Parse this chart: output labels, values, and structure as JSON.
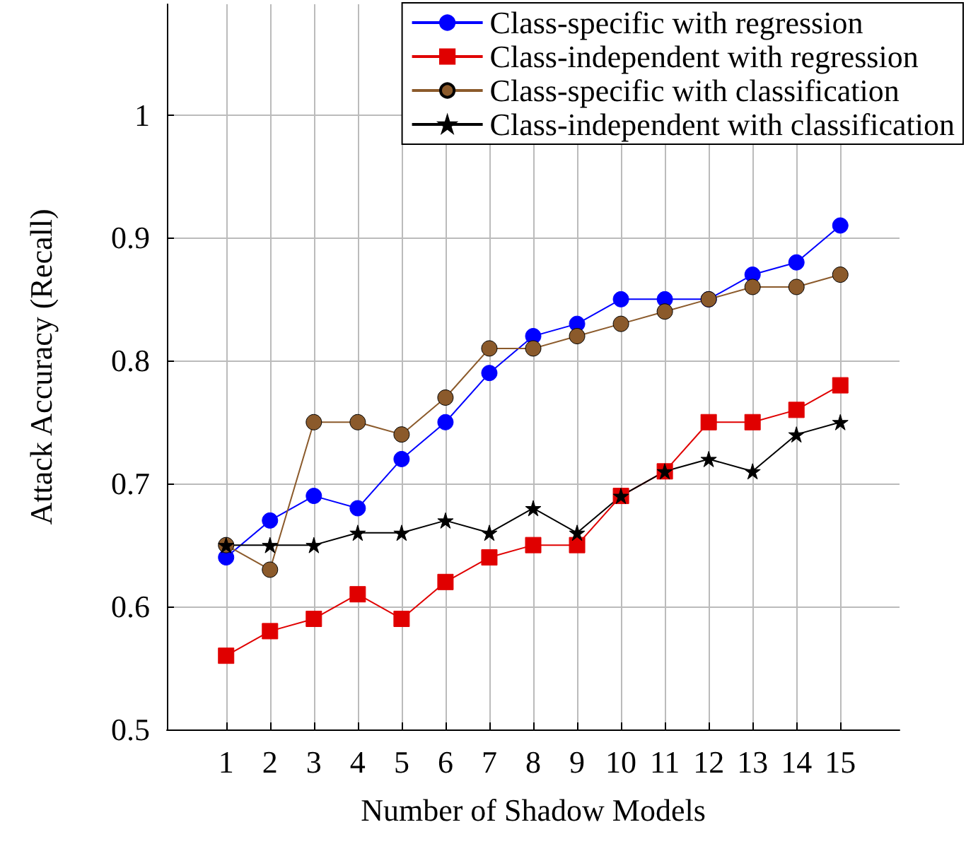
{
  "chart_data": {
    "type": "line",
    "xlabel": "Number of Shadow Models",
    "ylabel": "Attack Accuracy (Recall)",
    "x": [
      1,
      2,
      3,
      4,
      5,
      6,
      7,
      8,
      9,
      10,
      11,
      12,
      13,
      14,
      15
    ],
    "xlim": [
      -0.35,
      16.35
    ],
    "xticks": [
      1,
      2,
      3,
      4,
      5,
      6,
      7,
      8,
      9,
      10,
      11,
      12,
      13,
      14,
      15
    ],
    "ylim": [
      0.5,
      1.09
    ],
    "yticks": [
      0.5,
      0.6,
      0.7,
      0.8,
      0.9,
      1
    ],
    "grid": true,
    "legend": "top right",
    "line_style": "solid",
    "series": [
      {
        "name": "Class-specific with regression",
        "color": "#0000ff",
        "marker": "circle",
        "values": [
          0.64,
          0.67,
          0.69,
          0.68,
          0.72,
          0.75,
          0.79,
          0.82,
          0.83,
          0.85,
          0.85,
          0.85,
          0.87,
          0.88,
          0.91
        ]
      },
      {
        "name": "Class-independent with regression",
        "color": "#e00000",
        "marker": "square",
        "values": [
          0.56,
          0.58,
          0.59,
          0.61,
          0.59,
          0.62,
          0.64,
          0.65,
          0.65,
          0.69,
          0.71,
          0.75,
          0.75,
          0.76,
          0.78
        ]
      },
      {
        "name": "Class-specific with classification",
        "color": "#8b5a2b",
        "marker": "circle",
        "values": [
          0.65,
          0.63,
          0.75,
          0.75,
          0.74,
          0.77,
          0.81,
          0.81,
          0.82,
          0.83,
          0.84,
          0.85,
          0.86,
          0.86,
          0.87
        ]
      },
      {
        "name": "Class-independent with classification",
        "color": "#000000",
        "marker": "star",
        "values": [
          0.65,
          0.65,
          0.65,
          0.66,
          0.66,
          0.67,
          0.66,
          0.68,
          0.66,
          0.69,
          0.71,
          0.72,
          0.71,
          0.74,
          0.75
        ]
      }
    ]
  }
}
